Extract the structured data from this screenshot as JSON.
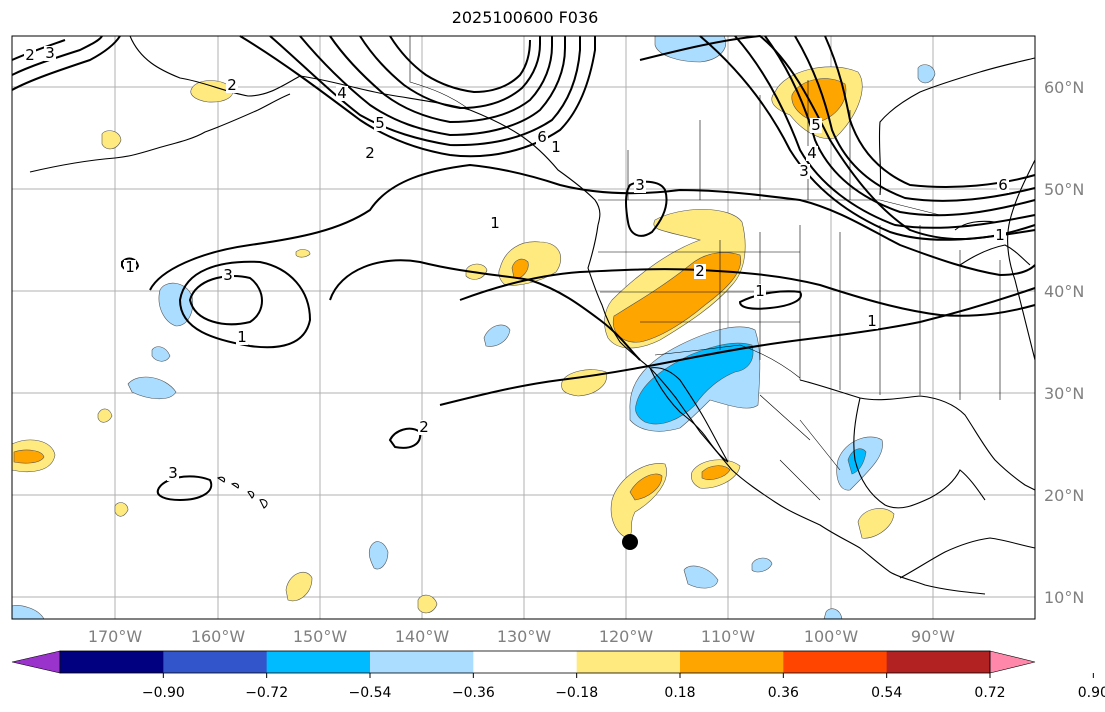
{
  "title": "2025100600 F036",
  "map": {
    "longitude_labels": [
      "170°W",
      "160°W",
      "150°W",
      "140°W",
      "130°W",
      "120°W",
      "110°W",
      "100°W",
      "90°W"
    ],
    "latitude_labels": [
      "60°N",
      "50°N",
      "40°N",
      "30°N",
      "20°N",
      "10°N"
    ],
    "contour_labels": [
      "1",
      "2",
      "3",
      "4",
      "5",
      "6",
      "1",
      "2",
      "3",
      "1",
      "2",
      "3",
      "1",
      "2",
      "1",
      "1",
      "3",
      "4",
      "5",
      "6",
      "1",
      "2",
      "3"
    ],
    "marker": "storm-position-dot"
  },
  "colorbar": {
    "tick_labels": [
      "−0.90",
      "−0.72",
      "−0.54",
      "−0.36",
      "−0.18",
      "0.18",
      "0.36",
      "0.54",
      "0.72",
      "0.90"
    ],
    "colors": [
      "#9933cc",
      "#000080",
      "#3355cc",
      "#00bbff",
      "#aaddff",
      "#ffffff",
      "#ffea80",
      "#ffa500",
      "#ff4500",
      "#b22222",
      "#ff88aa"
    ]
  },
  "colors": {
    "pos_light": "#ffea80",
    "pos_mid": "#ffa500",
    "neg_light": "#aaddff",
    "neg_mid": "#00bbff",
    "grid": "#b0b0b0"
  }
}
